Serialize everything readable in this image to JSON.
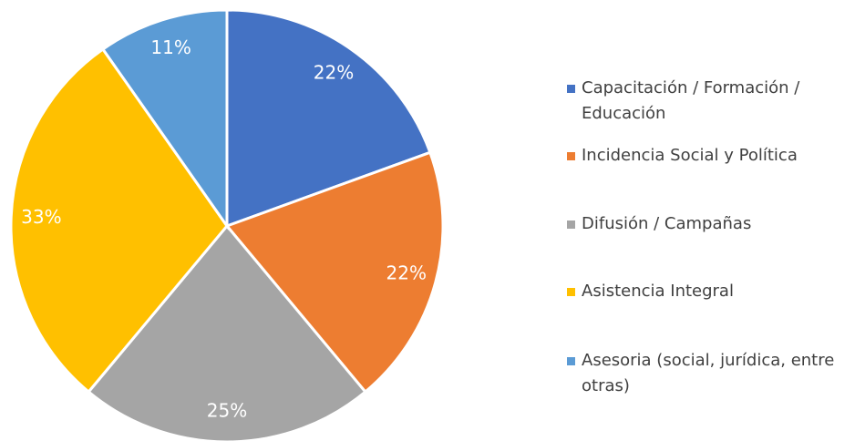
{
  "chart_data": {
    "type": "pie",
    "categories": [
      "Capacitación / Formación / Educación",
      "Incidencia Social y Política",
      "Difusión / Campañas",
      "Asistencia Integral",
      "Asesoria (social, jurídica, entre otras)"
    ],
    "values": [
      22,
      22,
      25,
      33,
      11
    ],
    "value_labels": [
      "22%",
      "22%",
      "25%",
      "33%",
      "11%"
    ],
    "colors": [
      "#4472c4",
      "#ed7d31",
      "#a5a5a5",
      "#ffc000",
      "#5b9bd5"
    ],
    "legend": "right"
  }
}
